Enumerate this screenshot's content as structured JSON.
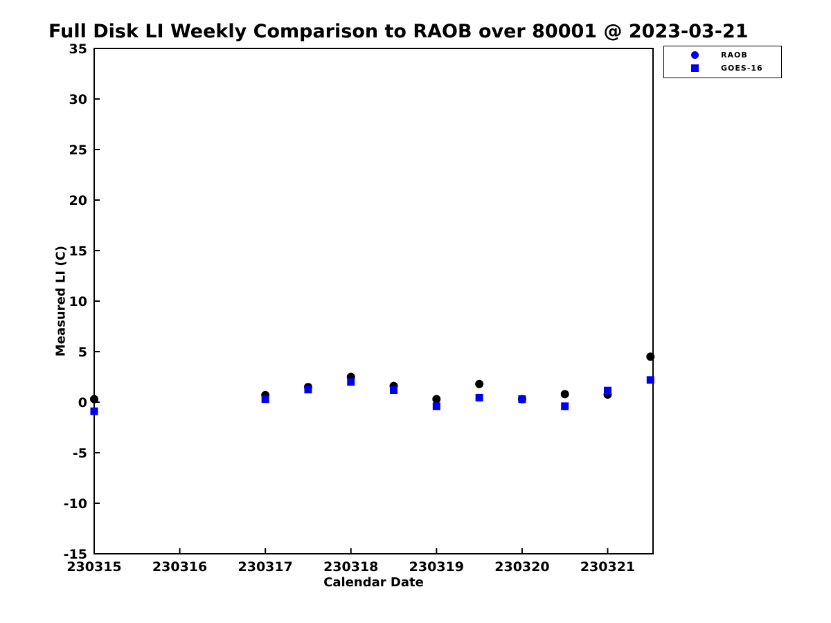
{
  "figure": {
    "background_color": "#ffffff",
    "axis_color": "#000000"
  },
  "chart_data": {
    "type": "scatter",
    "title": "Full Disk LI Weekly Comparison to RAOB over 80001 @ 2023-03-21",
    "xlabel": "Calendar Date",
    "ylabel": "Measured LI (C)",
    "xlim": [
      230315,
      230321.53
    ],
    "ylim": [
      -15,
      35
    ],
    "x_ticks": [
      230315,
      230316,
      230317,
      230318,
      230319,
      230320,
      230321
    ],
    "x_tick_labels": [
      "230315",
      "230316",
      "230317",
      "230318",
      "230319",
      "230320",
      "230321"
    ],
    "y_ticks": [
      -15,
      -10,
      -5,
      0,
      5,
      10,
      15,
      20,
      25,
      30,
      35
    ],
    "y_tick_labels": [
      "-15",
      "-10",
      "-5",
      "0",
      "5",
      "10",
      "15",
      "20",
      "25",
      "30",
      "35"
    ],
    "grid": false,
    "legend_position": "top-right",
    "x": [
      230315,
      230317,
      230317.5,
      230318,
      230318.5,
      230319,
      230319.5,
      230320,
      230320.5,
      230321,
      230321.5
    ],
    "series": [
      {
        "name": "RAOB",
        "marker": "circle",
        "color": "#000000",
        "legend_color": "#0000ee",
        "values": [
          0.3,
          0.7,
          1.5,
          2.5,
          1.6,
          0.3,
          1.8,
          0.3,
          0.8,
          0.75,
          4.5
        ]
      },
      {
        "name": "GOES-16",
        "marker": "square",
        "color": "#0000ee",
        "legend_color": "#0000ee",
        "values": [
          -0.9,
          0.3,
          1.25,
          2.0,
          1.2,
          -0.4,
          0.45,
          0.3,
          -0.4,
          1.15,
          2.2
        ]
      }
    ]
  }
}
